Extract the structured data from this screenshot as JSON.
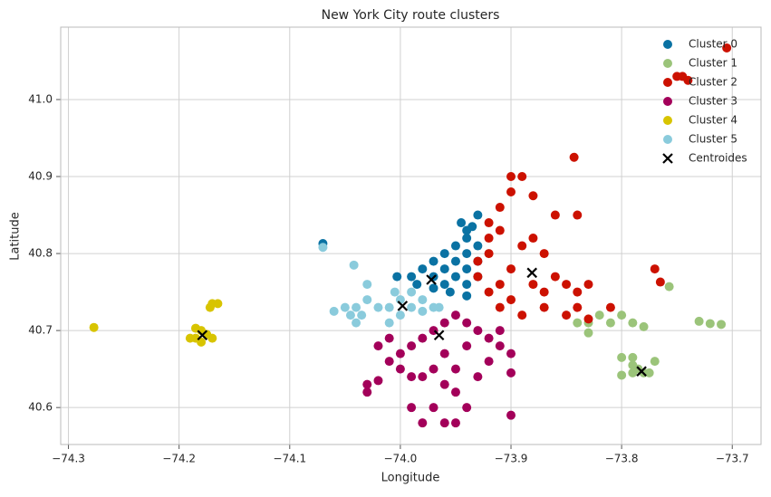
{
  "chart_data": {
    "type": "scatter",
    "title": "New York City route clusters",
    "x_label": "Longitude",
    "y_label": "Latitude",
    "xlim": [
      -74.307,
      -73.674
    ],
    "ylim": [
      40.552,
      41.094
    ],
    "xticks": [
      {
        "value": -74.3,
        "label": "−74.3"
      },
      {
        "value": -74.2,
        "label": "−74.2"
      },
      {
        "value": -74.1,
        "label": "−74.1"
      },
      {
        "value": -74.0,
        "label": "−74.0"
      },
      {
        "value": -73.9,
        "label": "−73.9"
      },
      {
        "value": -73.8,
        "label": "−73.8"
      },
      {
        "value": -73.7,
        "label": "−73.7"
      }
    ],
    "yticks": [
      40.6,
      40.7,
      40.8,
      40.9,
      {
        "value": 41,
        "label": "41.0"
      }
    ],
    "grid": true,
    "legend": "upper right",
    "series": [
      {
        "name": "Cluster 0",
        "color": "#0a72a3",
        "marker": "o",
        "x": [
          -73.99,
          -73.98,
          -73.97,
          -73.96,
          -73.95,
          -73.94,
          -73.935,
          -73.93,
          -73.97,
          -73.96,
          -73.95,
          -73.94,
          -73.93,
          -73.93,
          -73.94,
          -73.95,
          -73.96,
          -73.94,
          -73.93,
          -73.985,
          -73.97,
          -73.955,
          -73.94,
          -73.94,
          -73.945,
          -74.07,
          -74.003
        ],
        "values": [
          40.77,
          40.78,
          40.79,
          40.8,
          40.81,
          40.82,
          40.835,
          40.85,
          40.77,
          40.78,
          40.79,
          40.8,
          40.81,
          40.79,
          40.78,
          40.77,
          40.76,
          40.76,
          40.77,
          40.76,
          40.755,
          40.75,
          40.745,
          40.83,
          40.84,
          40.813,
          40.77
        ]
      },
      {
        "name": "Cluster 1",
        "color": "#9bc47a",
        "marker": "o",
        "x": [
          -73.82,
          -73.81,
          -73.8,
          -73.79,
          -73.78,
          -73.79,
          -73.8,
          -73.785,
          -73.78,
          -73.775,
          -73.79,
          -73.77,
          -73.73,
          -73.72,
          -73.71,
          -73.757,
          -73.83,
          -73.83,
          -73.84,
          -73.8,
          -73.79
        ],
        "values": [
          40.72,
          40.71,
          40.72,
          40.71,
          40.705,
          40.665,
          40.665,
          40.65,
          40.645,
          40.645,
          40.655,
          40.66,
          40.712,
          40.709,
          40.708,
          40.757,
          40.697,
          40.71,
          40.71,
          40.642,
          40.645
        ]
      },
      {
        "name": "Cluster 2",
        "color": "#cc1100",
        "marker": "o",
        "x": [
          -73.92,
          -73.91,
          -73.9,
          -73.89,
          -73.9,
          -73.88,
          -73.91,
          -73.92,
          -73.92,
          -73.9,
          -73.91,
          -73.92,
          -73.9,
          -73.88,
          -73.86,
          -73.87,
          -73.85,
          -73.84,
          -73.83,
          -73.84,
          -73.85,
          -73.87,
          -73.89,
          -73.91,
          -73.93,
          -73.93,
          -73.843,
          -73.705,
          -73.75,
          -73.745,
          -73.74,
          -73.77,
          -73.765,
          -73.81,
          -73.88,
          -73.86,
          -73.84,
          -73.87,
          -73.89,
          -73.83
        ],
        "values": [
          40.84,
          40.86,
          40.88,
          40.9,
          40.9,
          40.875,
          40.83,
          40.82,
          40.8,
          40.78,
          40.76,
          40.75,
          40.74,
          40.76,
          40.77,
          40.75,
          40.76,
          40.75,
          40.76,
          40.73,
          40.72,
          40.73,
          40.72,
          40.73,
          40.79,
          40.77,
          40.925,
          41.067,
          41.03,
          41.03,
          41.025,
          40.78,
          40.763,
          40.73,
          40.82,
          40.85,
          40.85,
          40.8,
          40.81,
          40.715
        ]
      },
      {
        "name": "Cluster 3",
        "color": "#a3005a",
        "marker": "o",
        "x": [
          -74.03,
          -74.03,
          -74.02,
          -74.01,
          -74.0,
          -73.99,
          -73.98,
          -73.97,
          -73.96,
          -73.95,
          -73.94,
          -73.93,
          -73.92,
          -73.91,
          -73.9,
          -73.92,
          -73.94,
          -73.96,
          -73.97,
          -73.98,
          -73.96,
          -73.95,
          -73.97,
          -73.96,
          -73.98,
          -73.99,
          -73.99,
          -74.01,
          -74.02,
          -74.0,
          -73.95,
          -73.93,
          -73.9,
          -73.9,
          -73.91,
          -73.94,
          -73.95
        ],
        "values": [
          40.63,
          40.62,
          40.635,
          40.66,
          40.67,
          40.68,
          40.69,
          40.7,
          40.71,
          40.72,
          40.71,
          40.7,
          40.69,
          40.68,
          40.67,
          40.66,
          40.68,
          40.67,
          40.65,
          40.64,
          40.63,
          40.62,
          40.6,
          40.58,
          40.58,
          40.6,
          40.64,
          40.69,
          40.68,
          40.65,
          40.65,
          40.64,
          40.645,
          40.59,
          40.7,
          40.6,
          40.58
        ]
      },
      {
        "name": "Cluster 4",
        "color": "#d8c400",
        "marker": "o",
        "x": [
          -74.277,
          -74.18,
          -74.185,
          -74.175,
          -74.17,
          -74.19,
          -74.18,
          -74.17,
          -74.165,
          -74.172,
          -74.185
        ],
        "values": [
          40.704,
          40.7,
          40.69,
          40.695,
          40.69,
          40.69,
          40.685,
          40.735,
          40.735,
          40.73,
          40.703
        ]
      },
      {
        "name": "Cluster 5",
        "color": "#8acbdc",
        "marker": "o",
        "x": [
          -74.0,
          -74.01,
          -74.0,
          -73.99,
          -73.98,
          -73.99,
          -74.005,
          -73.98,
          -74.02,
          -74.03,
          -74.04,
          -74.05,
          -74.03,
          -74.035,
          -74.04,
          -74.045,
          -74.06,
          -74.07,
          -74.042,
          -73.97,
          -73.965,
          -74.01
        ],
        "values": [
          40.72,
          40.71,
          40.74,
          40.73,
          40.74,
          40.75,
          40.75,
          40.725,
          40.73,
          40.74,
          40.73,
          40.73,
          40.76,
          40.72,
          40.71,
          40.72,
          40.725,
          40.808,
          40.785,
          40.73,
          40.73,
          40.73
        ]
      },
      {
        "name": "Centroides",
        "color": "#000000",
        "marker": "x",
        "x": [
          -73.972,
          -73.998,
          -73.965,
          -73.881,
          -73.782,
          -74.179
        ],
        "values": [
          40.766,
          40.732,
          40.694,
          40.775,
          40.647,
          40.694
        ]
      }
    ]
  }
}
